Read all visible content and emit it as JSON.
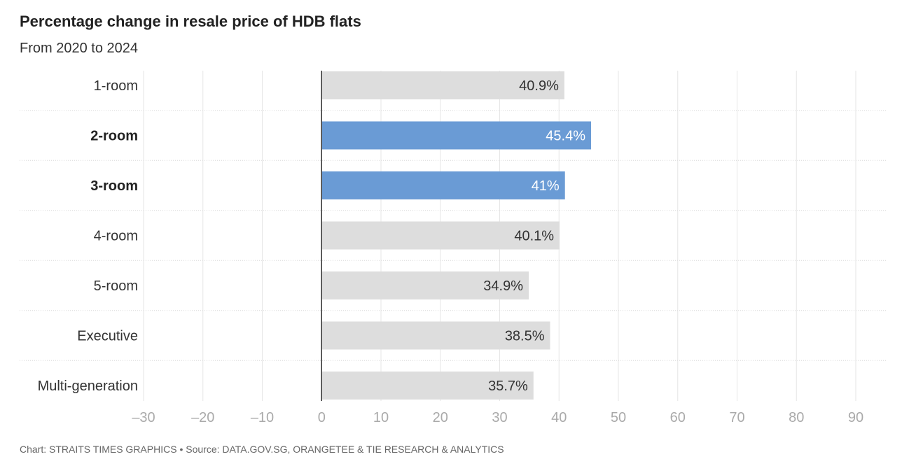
{
  "title": "Percentage change in resale price of HDB flats",
  "subtitle": "From 2020 to 2024",
  "footer": "Chart: STRAITS TIMES GRAPHICS • Source: DATA.GOV.SG, ORANGETEE & TIE RESEARCH & ANALYTICS",
  "chart_data": {
    "type": "bar",
    "orientation": "horizontal",
    "categories": [
      "1-room",
      "2-room",
      "3-room",
      "4-room",
      "5-room",
      "Executive",
      "Multi-generation"
    ],
    "values": [
      40.9,
      45.4,
      41,
      40.1,
      34.9,
      38.5,
      35.7
    ],
    "value_labels": [
      "40.9%",
      "45.4%",
      "41%",
      "40.1%",
      "34.9%",
      "38.5%",
      "35.7%"
    ],
    "highlighted": [
      false,
      true,
      true,
      false,
      false,
      false,
      false
    ],
    "xlim": [
      -30,
      90
    ],
    "xticks": [
      -30,
      -20,
      -10,
      0,
      10,
      20,
      30,
      40,
      50,
      60,
      70,
      80,
      90
    ],
    "xtick_labels": [
      "–30",
      "–20",
      "–10",
      "0",
      "10",
      "20",
      "30",
      "40",
      "50",
      "60",
      "70",
      "80",
      "90"
    ],
    "grid": true,
    "colors": {
      "default_bar": "#dddddd",
      "highlight_bar": "#6a9bd5",
      "grid": "#e6e6e6",
      "zero_line": "#333333",
      "tick_label": "#aaaaaa"
    }
  }
}
